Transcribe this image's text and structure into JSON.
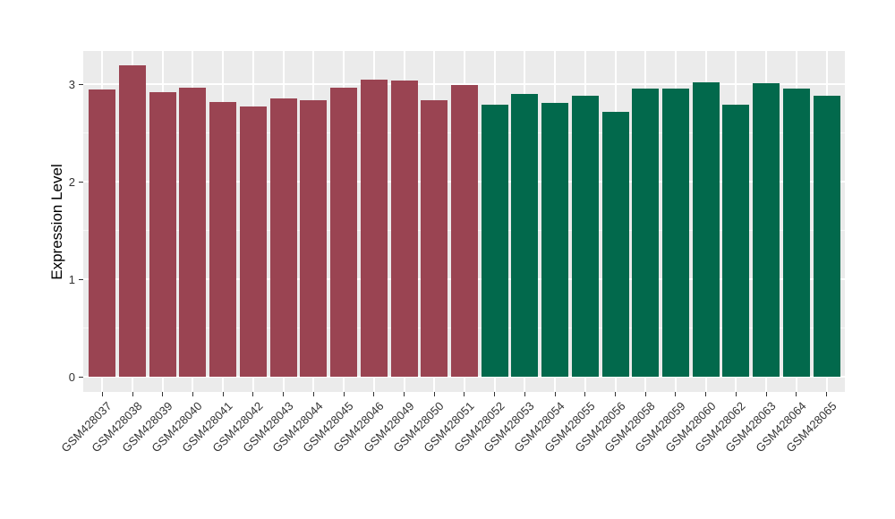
{
  "chart_data": {
    "type": "bar",
    "title": "",
    "xlabel": "",
    "ylabel": "Expression Level",
    "categories": [
      "GSM428037",
      "GSM428038",
      "GSM428039",
      "GSM428040",
      "GSM428041",
      "GSM428042",
      "GSM428043",
      "GSM428044",
      "GSM428045",
      "GSM428046",
      "GSM428049",
      "GSM428050",
      "GSM428051",
      "GSM428052",
      "GSM428053",
      "GSM428054",
      "GSM428055",
      "GSM428056",
      "GSM428058",
      "GSM428059",
      "GSM428060",
      "GSM428062",
      "GSM428063",
      "GSM428064",
      "GSM428065"
    ],
    "values": [
      2.95,
      3.2,
      2.92,
      2.97,
      2.82,
      2.77,
      2.86,
      2.84,
      2.97,
      3.05,
      3.04,
      2.84,
      2.99,
      2.79,
      2.9,
      2.81,
      2.88,
      2.72,
      2.96,
      2.96,
      3.02,
      2.79,
      3.01,
      2.96,
      2.88
    ],
    "bar_group": [
      0,
      0,
      0,
      0,
      0,
      0,
      0,
      0,
      0,
      0,
      0,
      0,
      0,
      1,
      1,
      1,
      1,
      1,
      1,
      1,
      1,
      1,
      1,
      1,
      1
    ],
    "group_colors": [
      "#9A4452",
      "#02694C"
    ],
    "yticks": [
      "0",
      "1",
      "2",
      "3"
    ],
    "ytick_values": [
      0,
      1,
      2,
      3
    ],
    "yminor_values": [
      0.5,
      1.5,
      2.5
    ],
    "ylim": [
      -0.17,
      3.33
    ],
    "grid": "white major + minor horizontal, white major vertical on gray panel",
    "legend": false,
    "panel_bg": "#EBEBEB",
    "grid_color": "#FFFFFF",
    "axis_text_color": "#333333",
    "axis_title_color": "#000000",
    "background_color": "#FFFFFF"
  }
}
